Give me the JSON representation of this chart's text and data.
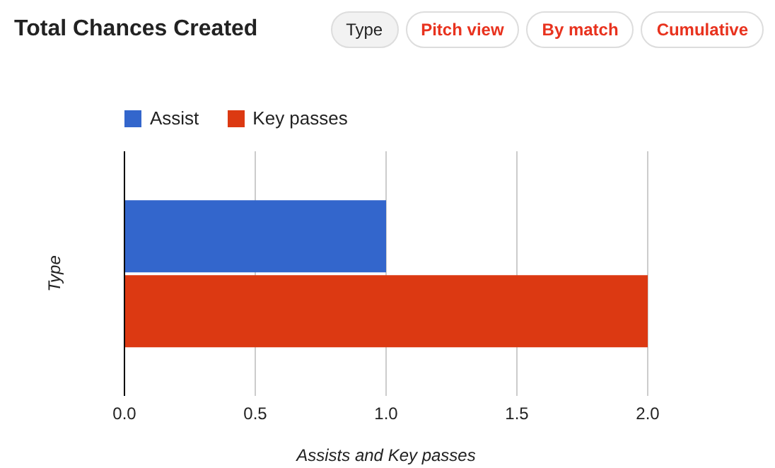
{
  "chart_data": {
    "type": "bar",
    "orientation": "horizontal",
    "title": "Total Chances Created",
    "xlabel": "Assists and Key passes",
    "ylabel": "Type",
    "categories": [
      null
    ],
    "series": [
      {
        "name": "Assist",
        "color": "#3366cc",
        "values": [
          1
        ]
      },
      {
        "name": "Key passes",
        "color": "#dc3912",
        "values": [
          2
        ]
      }
    ],
    "xlim": [
      0,
      2
    ],
    "xticks": [
      {
        "value": 0,
        "label": "0.0"
      },
      {
        "value": 0.5,
        "label": "0.5"
      },
      {
        "value": 1,
        "label": "1.0"
      },
      {
        "value": 1.5,
        "label": "1.5"
      },
      {
        "value": 2,
        "label": "2.0"
      }
    ],
    "grid": "x",
    "legend": "top",
    "tick_labels": "x",
    "annotations": [
      "Type",
      "Pitch view",
      "By match",
      "Cumulative"
    ]
  }
}
